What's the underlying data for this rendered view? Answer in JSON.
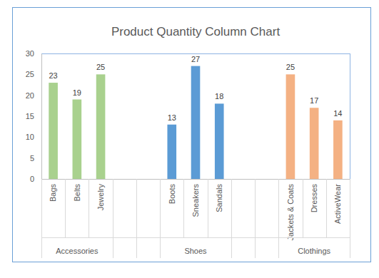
{
  "chart_data": {
    "type": "bar",
    "title": "Product Quantity Column Chart",
    "categories": [
      "Bags",
      "Belts",
      "Jewelry",
      null,
      null,
      "Boots",
      "Sneakers",
      "Sandals",
      null,
      null,
      "Jackets & Coats",
      "Dresses",
      "ActiveWear"
    ],
    "groups": [
      "Accessories",
      "Accessories",
      "Accessories",
      null,
      null,
      "Shoes",
      "Shoes",
      "Shoes",
      null,
      null,
      "Clothings",
      "Clothings",
      "Clothings"
    ],
    "values": [
      23,
      19,
      25,
      null,
      null,
      13,
      27,
      18,
      null,
      null,
      25,
      17,
      14
    ],
    "colors": [
      "#a9d18e",
      "#a9d18e",
      "#a9d18e",
      null,
      null,
      "#5b9bd5",
      "#5b9bd5",
      "#5b9bd5",
      null,
      null,
      "#f4b183",
      "#f4b183",
      "#f4b183"
    ],
    "ylim": [
      0,
      30
    ],
    "yticks": [
      0,
      5,
      10,
      15,
      20,
      25,
      30
    ],
    "grid": false,
    "data_labels": true
  }
}
